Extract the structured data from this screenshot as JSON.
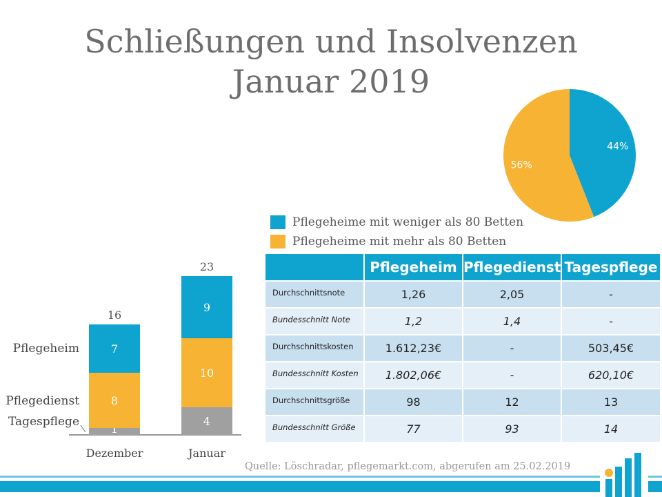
{
  "title": {
    "line1": "Schließungen und Insolvenzen",
    "line2": "Januar 2019"
  },
  "colors": {
    "blue": "#0fa3d0",
    "orange": "#f6b334",
    "gray": "#a0a0a0",
    "title_gray": "#6d6d6d"
  },
  "chart_data": [
    {
      "type": "bar",
      "stacked": true,
      "categories": [
        "Dezember",
        "Januar"
      ],
      "series": [
        {
          "name": "Tagespflege",
          "values": [
            1,
            4
          ],
          "color": "#a0a0a0"
        },
        {
          "name": "Pflegedienst",
          "values": [
            8,
            10
          ],
          "color": "#f6b334"
        },
        {
          "name": "Pflegeheim",
          "values": [
            7,
            9
          ],
          "color": "#0fa3d0"
        }
      ],
      "totals": [
        16,
        23
      ],
      "totals_labels": [
        "16",
        "23"
      ],
      "series_labels": [
        "Pflegeheim",
        "Pflegedienst",
        "Tagespflege"
      ],
      "ylim": [
        0,
        25
      ],
      "grid": false
    },
    {
      "type": "pie",
      "labels": [
        "Pflegeheime mit weniger als 80 Betten",
        "Pflegeheime mit mehr als 80 Betten"
      ],
      "values": [
        44,
        56
      ],
      "value_labels": [
        "44%",
        "56%"
      ],
      "colors": [
        "#0fa3d0",
        "#f6b334"
      ]
    }
  ],
  "legend": [
    {
      "label": "Pflegeheime mit weniger als 80 Betten",
      "color": "#0fa3d0"
    },
    {
      "label": "Pflegeheime mit mehr als 80 Betten",
      "color": "#f6b334"
    }
  ],
  "table": {
    "headers": [
      "",
      "Pflegeheim",
      "Pflegedienst",
      "Tagespflege"
    ],
    "rows": [
      {
        "label": "Durchschnittsnote",
        "values": [
          "1,26",
          "2,05",
          "-"
        ]
      },
      {
        "label": "Bundesschnitt Note",
        "values": [
          "1,2",
          "1,4",
          "-"
        ]
      },
      {
        "label": "Durchschnittskosten",
        "values": [
          "1.612,23€",
          "-",
          "503,45€"
        ]
      },
      {
        "label": "Bundesschnitt Kosten",
        "values": [
          "1.802,06€",
          "-",
          "620,10€"
        ]
      },
      {
        "label": "Durchschnittsgröße",
        "values": [
          "98",
          "12",
          "13"
        ]
      },
      {
        "label": "Bundesschnitt Größe",
        "values": [
          "77",
          "93",
          "14"
        ]
      }
    ]
  },
  "source": "Quelle: Löschradar, pflegemarkt.com, abgerufen am 25.02.2019"
}
